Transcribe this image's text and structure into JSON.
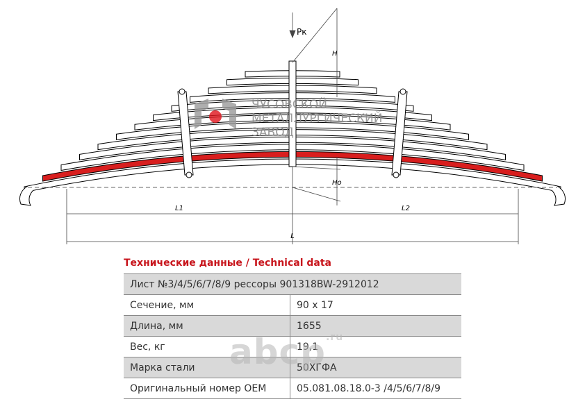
{
  "drawing": {
    "load_label": "Pк",
    "height_label": "H",
    "height0_label": "Hо",
    "length1_label": "L1",
    "length2_label": "L2",
    "length_label": "L",
    "logo_lines": [
      "ЧУСОВСКОЙ",
      "МЕТАЛЛУРГИЧЕСКИЙ",
      "ЗАВОД"
    ]
  },
  "watermark": {
    "name": "abcp",
    "suffix": ".ru"
  },
  "table": {
    "title": "Технические данные / Technical data",
    "header": "Лист №3/4/5/6/7/8/9 рессоры 901318BW-2912012",
    "rows": [
      [
        "Сечение, мм",
        "90 х 17"
      ],
      [
        "Длина, мм",
        "1655"
      ],
      [
        "Вес, кг",
        "19,1"
      ],
      [
        "Марка стали",
        "50ХГФА"
      ],
      [
        "Оригинальный номер OEM",
        "05.081.08.18.0-3 /4/5/6/7/8/9"
      ]
    ]
  }
}
